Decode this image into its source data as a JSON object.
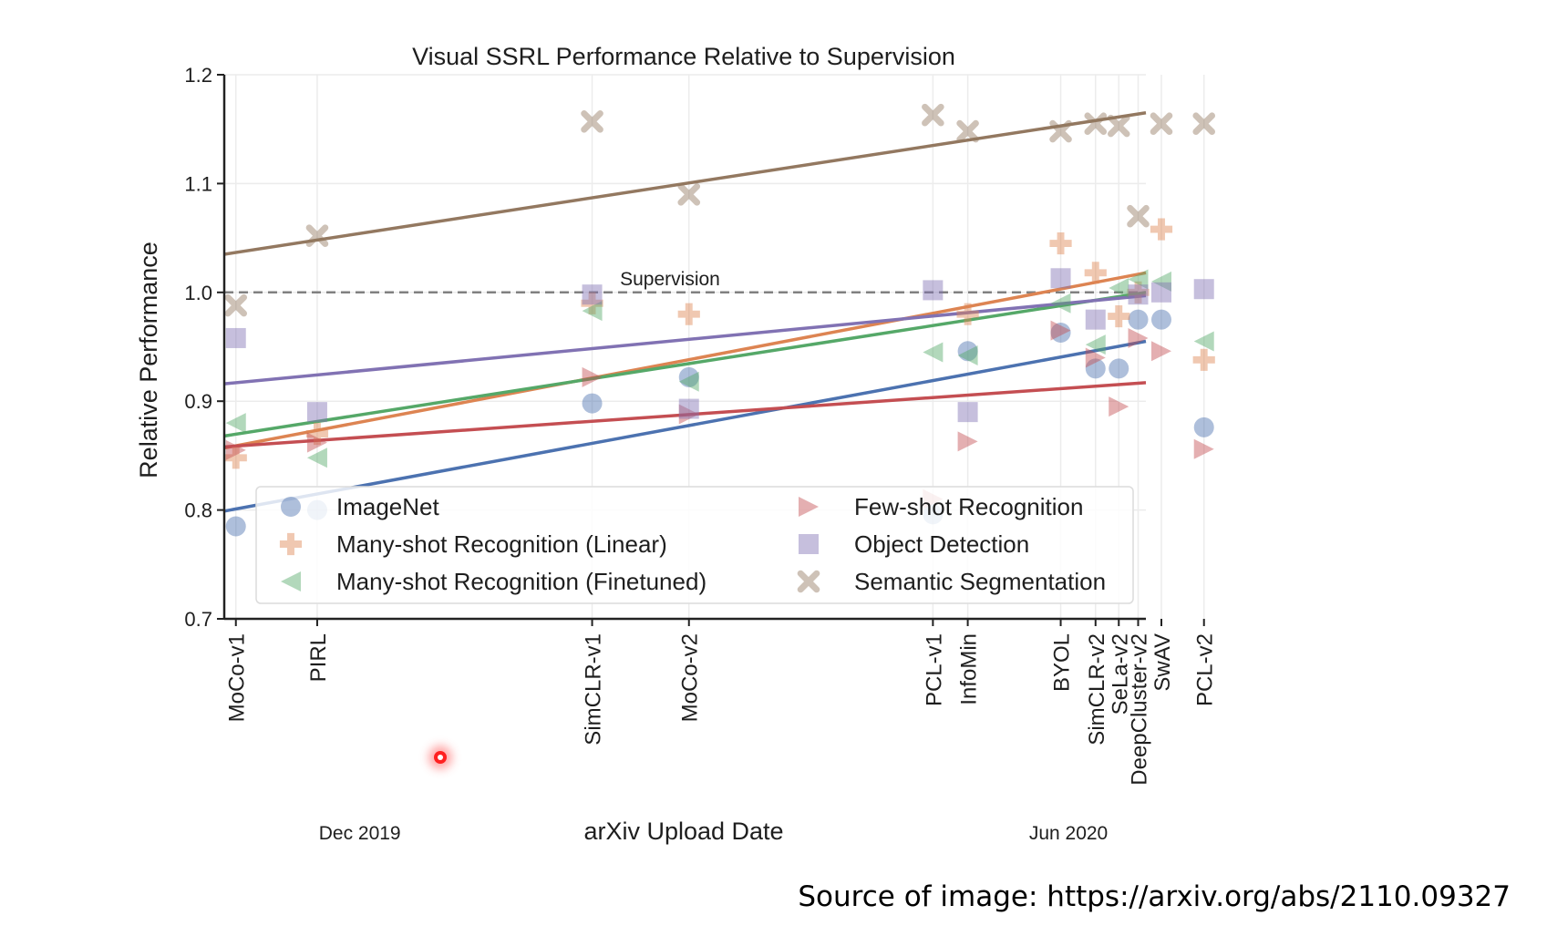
{
  "source_note": "Source of image: https://arxiv.org/abs/2110.09327",
  "colors": {
    "imagenet": "#4C72B0",
    "many_shot_linear": "#DD8452",
    "many_shot_finetuned": "#55A868",
    "few_shot": "#C44E52",
    "object_detection": "#8172B3",
    "semantic_segmentation": "#937860",
    "supervision": "#808080"
  },
  "chart_data": {
    "type": "scatter",
    "title": "Visual SSRL Performance Relative to Supervision",
    "xlabel": "arXiv Upload Date",
    "ylabel": "Relative Performance",
    "ylim": [
      0.7,
      1.2
    ],
    "yticks": [
      "0.7",
      "0.8",
      "0.9",
      "1.0",
      "1.1",
      "1.2"
    ],
    "xlim": [
      "2019-11-10",
      "2020-07-05"
    ],
    "date_labels": [
      {
        "label": "Dec 2019",
        "date": "2019-12-15"
      },
      {
        "label": "Jun 2020",
        "date": "2020-06-15"
      }
    ],
    "grid": true,
    "legend_position": "lower-center",
    "reference_line": {
      "label": "Supervision",
      "y": 1.0
    },
    "methods": [
      {
        "label": "MoCo-v1",
        "date": "2019-11-13"
      },
      {
        "label": "PIRL",
        "date": "2019-12-04"
      },
      {
        "label": "SimCLR-v1",
        "date": "2020-02-13"
      },
      {
        "label": "MoCo-v2",
        "date": "2020-03-09"
      },
      {
        "label": "PCL-v1",
        "date": "2020-05-11"
      },
      {
        "label": "InfoMin",
        "date": "2020-05-20"
      },
      {
        "label": "BYOL",
        "date": "2020-06-13"
      },
      {
        "label": "SimCLR-v2",
        "date": "2020-06-22"
      },
      {
        "label": "SeLa-v2",
        "date": "2020-06-28"
      },
      {
        "label": "DeepCluster-v2",
        "date": "2020-07-03"
      },
      {
        "label": "SwAV",
        "date": "2020-07-09"
      },
      {
        "label": "PCL-v2",
        "date": "2020-07-20"
      }
    ],
    "series": [
      {
        "name": "ImageNet",
        "marker": "circle",
        "color_key": "imagenet",
        "points": [
          {
            "method": "MoCo-v1",
            "y": 0.785
          },
          {
            "method": "PIRL",
            "y": 0.8
          },
          {
            "method": "SimCLR-v1",
            "y": 0.898
          },
          {
            "method": "MoCo-v2",
            "y": 0.922
          },
          {
            "method": "PCL-v1",
            "y": 0.796
          },
          {
            "method": "InfoMin",
            "y": 0.946
          },
          {
            "method": "BYOL",
            "y": 0.963
          },
          {
            "method": "SimCLR-v2",
            "y": 0.93
          },
          {
            "method": "SeLa-v2",
            "y": 0.93
          },
          {
            "method": "DeepCluster-v2",
            "y": 0.975
          },
          {
            "method": "SwAV",
            "y": 0.975
          },
          {
            "method": "PCL-v2",
            "y": 0.876
          }
        ],
        "trend": [
          0.799,
          0.955
        ]
      },
      {
        "name": "Many-shot Recognition (Linear)",
        "marker": "plus",
        "color_key": "many_shot_linear",
        "points": [
          {
            "method": "MoCo-v1",
            "y": 0.848
          },
          {
            "method": "PIRL",
            "y": 0.87
          },
          {
            "method": "SimCLR-v1",
            "y": 0.99
          },
          {
            "method": "MoCo-v2",
            "y": 0.98
          },
          {
            "method": "InfoMin",
            "y": 0.98
          },
          {
            "method": "BYOL",
            "y": 1.045
          },
          {
            "method": "SimCLR-v2",
            "y": 1.018
          },
          {
            "method": "SeLa-v2",
            "y": 0.978
          },
          {
            "method": "DeepCluster-v2",
            "y": 1.0
          },
          {
            "method": "SwAV",
            "y": 1.058
          },
          {
            "method": "PCL-v2",
            "y": 0.938
          }
        ],
        "trend": [
          0.857,
          1.018
        ]
      },
      {
        "name": "Many-shot Recognition (Finetuned)",
        "marker": "triangle-left",
        "color_key": "many_shot_finetuned",
        "points": [
          {
            "method": "MoCo-v1",
            "y": 0.88
          },
          {
            "method": "PIRL",
            "y": 0.848
          },
          {
            "method": "SimCLR-v1",
            "y": 0.983
          },
          {
            "method": "MoCo-v2",
            "y": 0.918
          },
          {
            "method": "PCL-v1",
            "y": 0.945
          },
          {
            "method": "InfoMin",
            "y": 0.942
          },
          {
            "method": "BYOL",
            "y": 0.99
          },
          {
            "method": "SimCLR-v2",
            "y": 0.952
          },
          {
            "method": "SeLa-v2",
            "y": 1.004
          },
          {
            "method": "DeepCluster-v2",
            "y": 1.012
          },
          {
            "method": "SwAV",
            "y": 1.01
          },
          {
            "method": "PCL-v2",
            "y": 0.955
          }
        ],
        "trend": [
          0.868,
          1.0
        ]
      },
      {
        "name": "Few-shot Recognition",
        "marker": "triangle-right",
        "color_key": "few_shot",
        "points": [
          {
            "method": "MoCo-v1",
            "y": 0.855
          },
          {
            "method": "PIRL",
            "y": 0.862
          },
          {
            "method": "SimCLR-v1",
            "y": 0.922
          },
          {
            "method": "MoCo-v2",
            "y": 0.888
          },
          {
            "method": "PCL-v1",
            "y": 0.81
          },
          {
            "method": "InfoMin",
            "y": 0.863
          },
          {
            "method": "BYOL",
            "y": 0.965
          },
          {
            "method": "SimCLR-v2",
            "y": 0.94
          },
          {
            "method": "SeLa-v2",
            "y": 0.895
          },
          {
            "method": "DeepCluster-v2",
            "y": 0.958
          },
          {
            "method": "SwAV",
            "y": 0.946
          },
          {
            "method": "PCL-v2",
            "y": 0.856
          }
        ],
        "trend": [
          0.858,
          0.917
        ]
      },
      {
        "name": "Object Detection",
        "marker": "square",
        "color_key": "object_detection",
        "points": [
          {
            "method": "MoCo-v1",
            "y": 0.958
          },
          {
            "method": "PIRL",
            "y": 0.89
          },
          {
            "method": "SimCLR-v1",
            "y": 0.998
          },
          {
            "method": "MoCo-v2",
            "y": 0.893
          },
          {
            "method": "PCL-v1",
            "y": 1.002
          },
          {
            "method": "InfoMin",
            "y": 0.89
          },
          {
            "method": "BYOL",
            "y": 1.013
          },
          {
            "method": "SimCLR-v2",
            "y": 0.975
          },
          {
            "method": "DeepCluster-v2",
            "y": 0.998
          },
          {
            "method": "SwAV",
            "y": 1.0
          },
          {
            "method": "PCL-v2",
            "y": 1.003
          }
        ],
        "trend": [
          0.916,
          0.997
        ]
      },
      {
        "name": "Semantic Segmentation",
        "marker": "x",
        "color_key": "semantic_segmentation",
        "points": [
          {
            "method": "MoCo-v1",
            "y": 0.988
          },
          {
            "method": "PIRL",
            "y": 1.052
          },
          {
            "method": "SimCLR-v1",
            "y": 1.157
          },
          {
            "method": "MoCo-v2",
            "y": 1.09
          },
          {
            "method": "PCL-v1",
            "y": 1.163
          },
          {
            "method": "InfoMin",
            "y": 1.148
          },
          {
            "method": "BYOL",
            "y": 1.148
          },
          {
            "method": "SimCLR-v2",
            "y": 1.155
          },
          {
            "method": "SeLa-v2",
            "y": 1.153
          },
          {
            "method": "DeepCluster-v2",
            "y": 1.07
          },
          {
            "method": "SwAV",
            "y": 1.155
          },
          {
            "method": "PCL-v2",
            "y": 1.155
          }
        ],
        "trend": [
          1.035,
          1.165
        ]
      }
    ]
  }
}
